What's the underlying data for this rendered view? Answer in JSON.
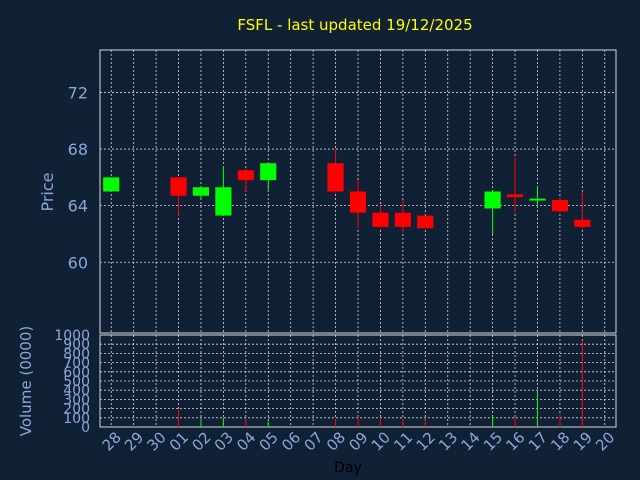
{
  "chart_data": [
    {
      "type": "candlestick",
      "title": "FSFL - last updated 19/12/2025",
      "ylabel": "Price",
      "xlabel": "",
      "ylim": [
        55,
        75
      ],
      "yticks": [
        60,
        64,
        68,
        72
      ],
      "grid": true,
      "x_tick_labels": [
        "28",
        "29",
        "30",
        "01",
        "02",
        "03",
        "04",
        "05",
        "06",
        "07",
        "08",
        "09",
        "10",
        "11",
        "12",
        "13",
        "14",
        "15",
        "16",
        "17",
        "18",
        "19",
        "20"
      ],
      "candles": [
        {
          "day": "28",
          "open": 65.0,
          "high": 66.0,
          "low": 65.0,
          "close": 66.0
        },
        {
          "day": "01",
          "open": 66.0,
          "high": 66.0,
          "low": 63.3,
          "close": 64.7
        },
        {
          "day": "02",
          "open": 64.7,
          "high": 65.3,
          "low": 64.5,
          "close": 65.3
        },
        {
          "day": "03",
          "open": 63.3,
          "high": 66.8,
          "low": 63.3,
          "close": 65.3
        },
        {
          "day": "04",
          "open": 66.5,
          "high": 66.6,
          "low": 65.0,
          "close": 65.8
        },
        {
          "day": "05",
          "open": 65.8,
          "high": 67.0,
          "low": 65.0,
          "close": 67.0
        },
        {
          "day": "08",
          "open": 67.0,
          "high": 68.0,
          "low": 64.9,
          "close": 65.0
        },
        {
          "day": "09",
          "open": 65.0,
          "high": 65.8,
          "low": 62.4,
          "close": 63.5
        },
        {
          "day": "10",
          "open": 63.5,
          "high": 64.0,
          "low": 62.4,
          "close": 62.5
        },
        {
          "day": "11",
          "open": 63.5,
          "high": 64.4,
          "low": 62.1,
          "close": 62.5
        },
        {
          "day": "12",
          "open": 63.3,
          "high": 63.3,
          "low": 62.4,
          "close": 62.4
        },
        {
          "day": "15",
          "open": 63.8,
          "high": 65.1,
          "low": 62.0,
          "close": 65.0
        },
        {
          "day": "16",
          "open": 64.8,
          "high": 67.4,
          "low": 63.5,
          "close": 64.6
        },
        {
          "day": "17",
          "open": 64.4,
          "high": 65.4,
          "low": 63.9,
          "close": 64.5
        },
        {
          "day": "18",
          "open": 64.4,
          "high": 64.6,
          "low": 63.5,
          "close": 63.6
        },
        {
          "day": "19",
          "open": 63.0,
          "high": 65.0,
          "low": 62.4,
          "close": 62.5
        }
      ],
      "up_color": "#00ff00",
      "down_color": "#ff0000"
    },
    {
      "type": "bar",
      "ylabel": "Volume (0000)",
      "xlabel": "Day",
      "ylim": [
        0,
        1000
      ],
      "yticks": [
        0,
        100,
        200,
        300,
        400,
        500,
        600,
        700,
        800,
        900,
        1000
      ],
      "grid": true,
      "x_tick_labels": [
        "28",
        "29",
        "30",
        "01",
        "02",
        "03",
        "04",
        "05",
        "06",
        "07",
        "08",
        "09",
        "10",
        "11",
        "12",
        "13",
        "14",
        "15",
        "16",
        "17",
        "18",
        "19",
        "20"
      ],
      "bars": [
        {
          "day": "28",
          "value": 10,
          "color": "#00ff00"
        },
        {
          "day": "01",
          "value": 190,
          "color": "#ff0000"
        },
        {
          "day": "02",
          "value": 90,
          "color": "#00ff00"
        },
        {
          "day": "03",
          "value": 100,
          "color": "#00ff00"
        },
        {
          "day": "04",
          "value": 90,
          "color": "#ff0000"
        },
        {
          "day": "05",
          "value": 60,
          "color": "#00ff00"
        },
        {
          "day": "08",
          "value": 90,
          "color": "#ff0000"
        },
        {
          "day": "09",
          "value": 110,
          "color": "#ff0000"
        },
        {
          "day": "10",
          "value": 100,
          "color": "#ff0000"
        },
        {
          "day": "11",
          "value": 90,
          "color": "#ff0000"
        },
        {
          "day": "12",
          "value": 80,
          "color": "#ff0000"
        },
        {
          "day": "15",
          "value": 120,
          "color": "#00ff00"
        },
        {
          "day": "16",
          "value": 110,
          "color": "#ff0000"
        },
        {
          "day": "17",
          "value": 400,
          "color": "#00ff00"
        },
        {
          "day": "18",
          "value": 140,
          "color": "#ff0000"
        },
        {
          "day": "19",
          "value": 940,
          "color": "#ff0000"
        }
      ]
    }
  ],
  "colors": {
    "background": "#102035",
    "plot_background": "#102035",
    "grid": "#d8d8d8",
    "axis_text": "#8aa8d8",
    "title": "#ffff00"
  }
}
